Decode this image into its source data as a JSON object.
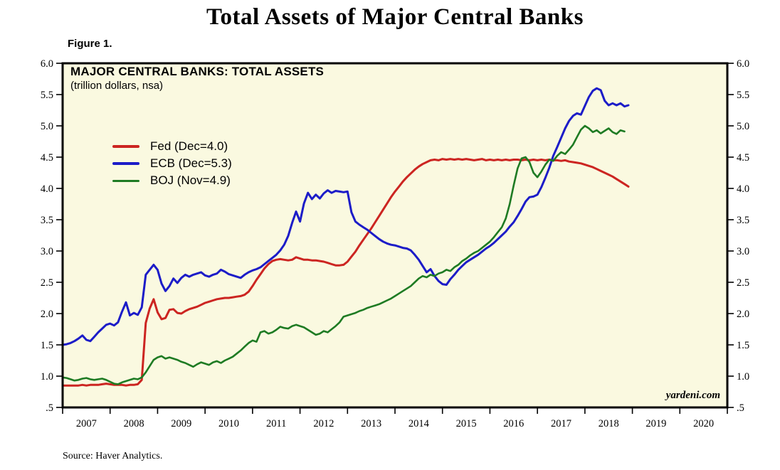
{
  "page": {
    "title": "Total Assets of Major Central Banks",
    "figure_label": "Figure 1.",
    "source": "Source: Haver Analytics.",
    "watermark": "yardeni.com"
  },
  "chart_data": {
    "type": "line",
    "title": "MAJOR CENTRAL BANKS: TOTAL ASSETS",
    "subtitle": "(trillion dollars, nsa)",
    "background_color": "#FAF9E0",
    "axis_color": "#000000",
    "grid": false,
    "legend_position": "upper-left-inside",
    "ylim": [
      0.5,
      6.0
    ],
    "xlim_years": [
      2007,
      2021
    ],
    "y_ticks": [
      "6.0",
      "5.5",
      "5.0",
      "4.5",
      "4.0",
      "3.5",
      "3.0",
      "2.5",
      "2.0",
      "1.5",
      "1.0",
      ".5"
    ],
    "x_labels": [
      "2007",
      "2008",
      "2009",
      "2010",
      "2011",
      "2012",
      "2013",
      "2014",
      "2015",
      "2016",
      "2017",
      "2018",
      "2019",
      "2020"
    ],
    "x_unit": "monthly, Jan 2007 - Dec 2018",
    "series": [
      {
        "name": "Fed",
        "legend": "Fed (Dec=4.0)",
        "color": "#CC2521",
        "start_year": 2007,
        "step_months": 1,
        "values": [
          0.85,
          0.85,
          0.85,
          0.85,
          0.85,
          0.86,
          0.85,
          0.86,
          0.86,
          0.86,
          0.87,
          0.88,
          0.87,
          0.86,
          0.86,
          0.86,
          0.85,
          0.86,
          0.86,
          0.87,
          0.94,
          1.85,
          2.08,
          2.23,
          2.02,
          1.91,
          1.93,
          2.06,
          2.07,
          2.01,
          2.0,
          2.04,
          2.07,
          2.09,
          2.11,
          2.14,
          2.17,
          2.19,
          2.21,
          2.23,
          2.24,
          2.25,
          2.25,
          2.26,
          2.27,
          2.28,
          2.3,
          2.35,
          2.44,
          2.54,
          2.63,
          2.72,
          2.79,
          2.84,
          2.86,
          2.87,
          2.86,
          2.85,
          2.86,
          2.9,
          2.88,
          2.86,
          2.86,
          2.85,
          2.85,
          2.84,
          2.83,
          2.81,
          2.79,
          2.77,
          2.77,
          2.78,
          2.83,
          2.91,
          2.99,
          3.09,
          3.18,
          3.27,
          3.36,
          3.46,
          3.56,
          3.66,
          3.76,
          3.86,
          3.95,
          4.03,
          4.11,
          4.18,
          4.24,
          4.3,
          4.35,
          4.39,
          4.42,
          4.45,
          4.46,
          4.45,
          4.47,
          4.46,
          4.47,
          4.46,
          4.47,
          4.46,
          4.47,
          4.46,
          4.45,
          4.46,
          4.47,
          4.45,
          4.46,
          4.45,
          4.46,
          4.45,
          4.46,
          4.45,
          4.46,
          4.46,
          4.45,
          4.46,
          4.45,
          4.46,
          4.45,
          4.46,
          4.45,
          4.46,
          4.45,
          4.45,
          4.44,
          4.45,
          4.43,
          4.42,
          4.41,
          4.4,
          4.38,
          4.36,
          4.34,
          4.31,
          4.28,
          4.25,
          4.22,
          4.19,
          4.15,
          4.11,
          4.07,
          4.03
        ]
      },
      {
        "name": "ECB",
        "legend": "ECB (Dec=5.3)",
        "color": "#1C1CC8",
        "start_year": 2007,
        "step_months": 1,
        "values": [
          1.5,
          1.51,
          1.53,
          1.56,
          1.6,
          1.65,
          1.58,
          1.56,
          1.63,
          1.7,
          1.76,
          1.82,
          1.84,
          1.81,
          1.86,
          2.03,
          2.18,
          1.97,
          2.01,
          1.98,
          2.1,
          2.62,
          2.7,
          2.78,
          2.7,
          2.48,
          2.36,
          2.44,
          2.56,
          2.49,
          2.57,
          2.62,
          2.59,
          2.62,
          2.64,
          2.66,
          2.61,
          2.59,
          2.62,
          2.64,
          2.7,
          2.67,
          2.63,
          2.61,
          2.59,
          2.57,
          2.62,
          2.66,
          2.69,
          2.71,
          2.74,
          2.79,
          2.84,
          2.89,
          2.94,
          3.01,
          3.1,
          3.24,
          3.45,
          3.63,
          3.47,
          3.76,
          3.93,
          3.83,
          3.9,
          3.84,
          3.92,
          3.97,
          3.93,
          3.96,
          3.95,
          3.94,
          3.95,
          3.62,
          3.47,
          3.42,
          3.38,
          3.34,
          3.29,
          3.24,
          3.19,
          3.15,
          3.12,
          3.1,
          3.09,
          3.07,
          3.05,
          3.04,
          3.01,
          2.94,
          2.86,
          2.76,
          2.66,
          2.71,
          2.6,
          2.52,
          2.47,
          2.46,
          2.55,
          2.62,
          2.7,
          2.76,
          2.82,
          2.86,
          2.9,
          2.94,
          2.99,
          3.04,
          3.08,
          3.13,
          3.19,
          3.25,
          3.31,
          3.39,
          3.46,
          3.56,
          3.67,
          3.79,
          3.86,
          3.87,
          3.9,
          4.02,
          4.17,
          4.33,
          4.52,
          4.66,
          4.81,
          4.96,
          5.08,
          5.16,
          5.2,
          5.18,
          5.32,
          5.46,
          5.56,
          5.6,
          5.57,
          5.4,
          5.33,
          5.36,
          5.33,
          5.36,
          5.31,
          5.33
        ]
      },
      {
        "name": "BOJ",
        "legend": "BOJ (Nov=4.9)",
        "color": "#1E7B23",
        "start_year": 2007,
        "step_months": 1,
        "values": [
          0.98,
          0.97,
          0.95,
          0.93,
          0.94,
          0.96,
          0.97,
          0.95,
          0.94,
          0.95,
          0.96,
          0.94,
          0.91,
          0.88,
          0.87,
          0.9,
          0.92,
          0.94,
          0.96,
          0.95,
          0.98,
          1.06,
          1.16,
          1.26,
          1.3,
          1.32,
          1.28,
          1.3,
          1.28,
          1.26,
          1.23,
          1.21,
          1.18,
          1.15,
          1.19,
          1.22,
          1.2,
          1.18,
          1.22,
          1.24,
          1.21,
          1.25,
          1.28,
          1.31,
          1.36,
          1.41,
          1.47,
          1.53,
          1.57,
          1.55,
          1.7,
          1.72,
          1.68,
          1.7,
          1.74,
          1.79,
          1.77,
          1.76,
          1.8,
          1.82,
          1.8,
          1.78,
          1.74,
          1.7,
          1.66,
          1.68,
          1.72,
          1.7,
          1.75,
          1.8,
          1.86,
          1.95,
          1.97,
          1.99,
          2.01,
          2.04,
          2.06,
          2.09,
          2.11,
          2.13,
          2.15,
          2.18,
          2.21,
          2.24,
          2.28,
          2.32,
          2.36,
          2.4,
          2.44,
          2.5,
          2.56,
          2.6,
          2.58,
          2.62,
          2.6,
          2.64,
          2.66,
          2.7,
          2.68,
          2.74,
          2.78,
          2.84,
          2.88,
          2.93,
          2.97,
          3.0,
          3.05,
          3.1,
          3.15,
          3.22,
          3.3,
          3.38,
          3.52,
          3.75,
          4.05,
          4.32,
          4.48,
          4.5,
          4.42,
          4.25,
          4.18,
          4.27,
          4.38,
          4.46,
          4.44,
          4.52,
          4.58,
          4.55,
          4.62,
          4.7,
          4.82,
          4.94,
          5.0,
          4.96,
          4.9,
          4.93,
          4.88,
          4.92,
          4.96,
          4.9,
          4.87,
          4.93,
          4.91
        ]
      }
    ]
  }
}
